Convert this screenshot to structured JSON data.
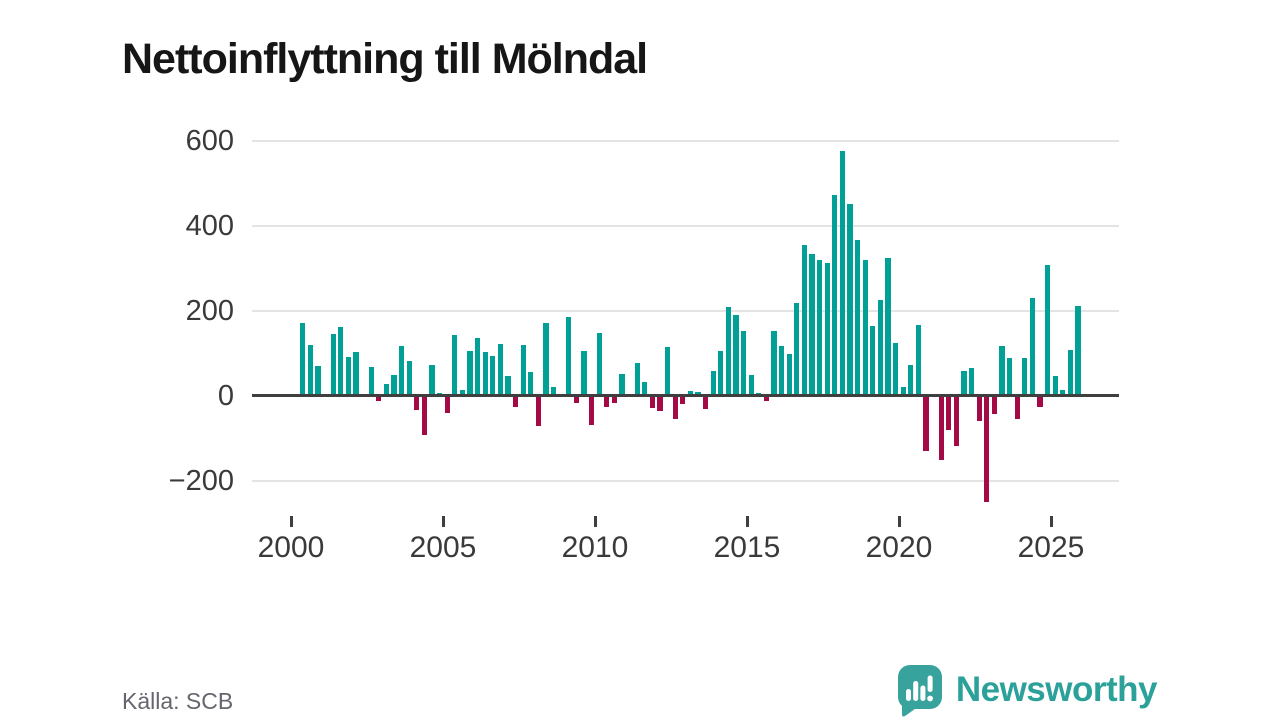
{
  "title": "Nettoinflyttning till Mölndal",
  "source_note": "Källa: SCB",
  "brand": {
    "name": "Newsworthy"
  },
  "colors": {
    "positive_bar": "#00a096",
    "negative_bar": "#a40a46",
    "gridline": "#e4e4e4",
    "zero_axis": "#3f3f3f",
    "axis_text": "#3a3a3a",
    "brand_teal": "#2ba19a"
  },
  "chart_data": {
    "type": "bar",
    "title": "Nettoinflyttning till Mölndal",
    "description": "Quarterly net migration to Mölndal; teal bars positive, crimson bars negative",
    "frequency": "quarterly",
    "start_quarter": "2000-Q2",
    "end_quarter": "2025-Q4",
    "x_tick_labels": [
      "2000",
      "2005",
      "2010",
      "2015",
      "2020",
      "2025"
    ],
    "y_tick_labels": [
      "600",
      "400",
      "200",
      "0",
      "−200"
    ],
    "y_tick_values": [
      600,
      400,
      200,
      0,
      -200
    ],
    "ylim": [
      -270,
      640
    ],
    "grid": "horizontal",
    "legend": "none",
    "values": [
      171,
      119,
      71,
      0,
      145,
      162,
      92,
      104,
      0,
      68,
      -12,
      28,
      50,
      118,
      82,
      -33,
      -92,
      72,
      8,
      -41,
      144,
      14,
      107,
      137,
      104,
      93,
      122,
      46,
      -27,
      120,
      57,
      -71,
      171,
      22,
      0,
      185,
      -16,
      107,
      -68,
      149,
      -25,
      -17,
      52,
      4,
      78,
      32,
      -29,
      -35,
      116,
      -55,
      -18,
      12,
      9,
      -31,
      58,
      105,
      210,
      190,
      153,
      49,
      6,
      -11,
      153,
      118,
      100,
      220,
      355,
      334,
      320,
      314,
      474,
      576,
      452,
      367,
      320,
      165,
      227,
      325,
      125,
      22,
      73,
      167,
      -130,
      0,
      -150,
      -80,
      -118,
      59,
      66,
      -58,
      -250,
      -43,
      118,
      90,
      -55,
      90,
      231,
      -25,
      308,
      46,
      14,
      108,
      212
    ]
  }
}
